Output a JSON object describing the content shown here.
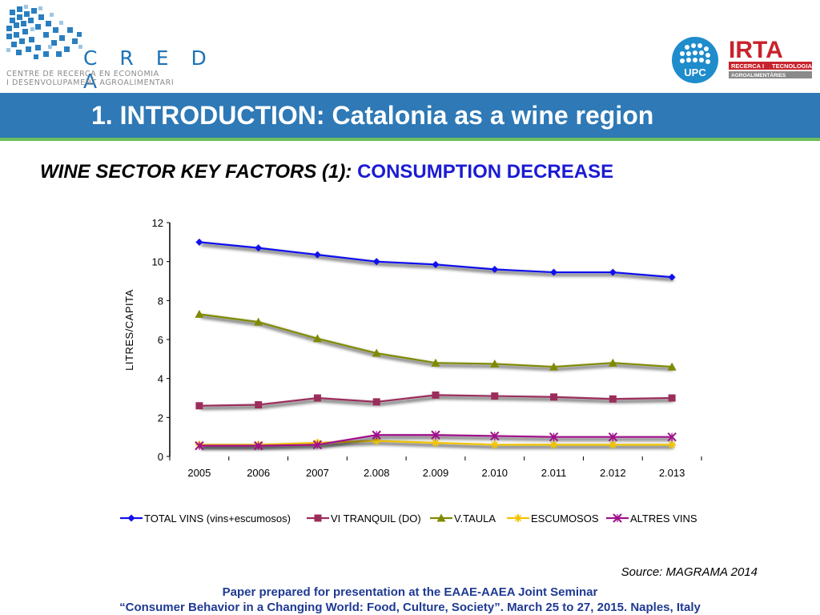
{
  "header": {
    "logo_creda": {
      "name": "C R E D A",
      "subtitle_line1": "CENTRE DE RECERCA EN ECONOMIA",
      "subtitle_line2": "I DESENVOLUPAMENT AGROALIMENTARI"
    },
    "logo_upc": {
      "text": "UPC"
    },
    "logo_irta": {
      "name": "IRTA",
      "sub_parts": [
        "RECERCA",
        "I",
        "TECNOLOGIA"
      ],
      "sub2": "AGROALIMENTÀRIES"
    },
    "title": "1. INTRODUCTION: Catalonia as a wine region"
  },
  "subtitle": {
    "prefix": "WINE SECTOR KEY FACTORS (1):",
    "highlight": "CONSUMPTION DECREASE"
  },
  "chart_data": {
    "type": "line",
    "title": "",
    "xlabel": "",
    "ylabel": "LITRES/CAPITA",
    "categories": [
      "2005",
      "2006",
      "2007",
      "2.008",
      "2.009",
      "2.010",
      "2.011",
      "2.012",
      "2.013"
    ],
    "ylim": [
      0,
      12
    ],
    "yticks": [
      "0",
      "2",
      "4",
      "6",
      "8",
      "10",
      "12"
    ],
    "grid": true,
    "legend_position": "bottom",
    "series": [
      {
        "name": "TOTAL VINS (vins+escumosos)",
        "color": "#1111ee",
        "marker": "diamond",
        "values": [
          11.0,
          10.7,
          10.35,
          10.0,
          9.85,
          9.6,
          9.45,
          9.45,
          9.2
        ]
      },
      {
        "name": "VI TRANQUIL (DO)",
        "color": "#9b2d5b",
        "marker": "square",
        "values": [
          2.6,
          2.65,
          3.0,
          2.8,
          3.15,
          3.1,
          3.05,
          2.95,
          3.0
        ]
      },
      {
        "name": "V.TAULA",
        "color": "#7f8a00",
        "marker": "triangle",
        "values": [
          7.3,
          6.9,
          6.05,
          5.3,
          4.8,
          4.75,
          4.6,
          4.8,
          4.6
        ]
      },
      {
        "name": "ESCUMOSOS",
        "color": "#f2c400",
        "marker": "star",
        "values": [
          0.6,
          0.6,
          0.7,
          0.8,
          0.7,
          0.6,
          0.6,
          0.6,
          0.6
        ]
      },
      {
        "name": "ALTRES VINS",
        "color": "#a0108a",
        "marker": "x",
        "values": [
          0.55,
          0.55,
          0.6,
          1.1,
          1.1,
          1.05,
          1.0,
          1.0,
          1.0
        ]
      }
    ]
  },
  "source": "Source: MAGRAMA 2014",
  "footer": {
    "line1": "Paper prepared for presentation at the EAAE-AAEA Joint Seminar",
    "line2": "“Consumer Behavior in a Changing World: Food, Culture, Society”. March 25 to 27, 2015. Naples, Italy"
  }
}
